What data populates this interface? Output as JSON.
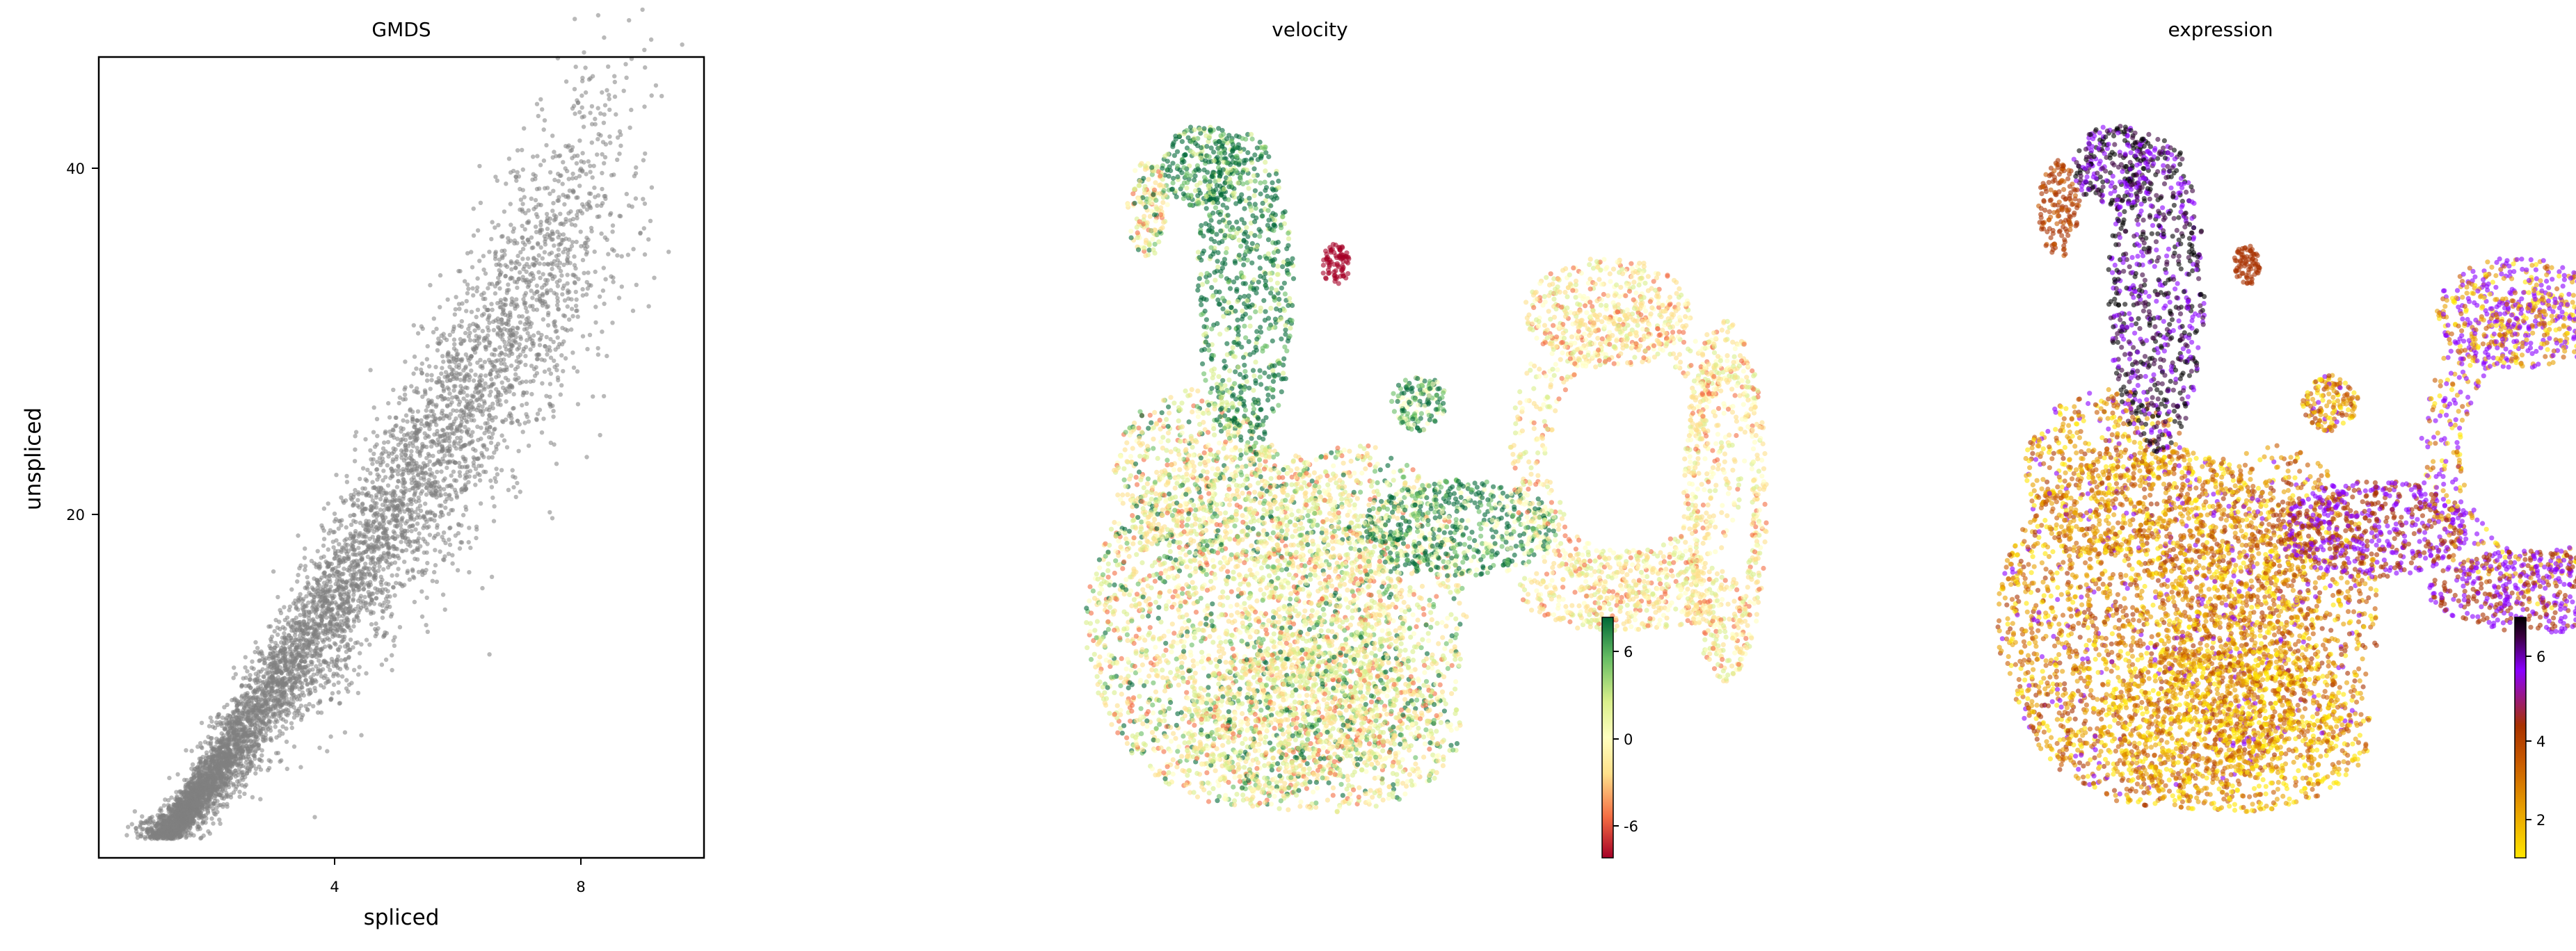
{
  "chart_data": [
    {
      "type": "scatter",
      "title": "GMDS",
      "xlabel": "spliced",
      "ylabel": "unspliced",
      "xlim": [
        -0.9,
        9.9
      ],
      "ylim": [
        -0.5,
        45.9
      ],
      "xticks": [
        4,
        8
      ],
      "yticks": [
        20,
        40
      ],
      "point_color": "#808080",
      "grid": false,
      "description_of_data": "dense cloud of cells; spliced vs unspliced counts"
    },
    {
      "type": "scatter",
      "title": "velocity",
      "axes": false,
      "colormap": [
        "#a50026",
        "#f46d43",
        "#fee08b",
        "#ffffbf",
        "#d9ef8b",
        "#66bd63",
        "#006837"
      ],
      "colorbar": {
        "ticks": [
          6,
          0,
          -6
        ],
        "range": [
          -8,
          8
        ]
      }
    },
    {
      "type": "scatter",
      "title": "expression",
      "axes": false,
      "colormap": [
        "#ffe600",
        "#e8a000",
        "#c85a00",
        "#a83200",
        "#8b00ff",
        "#3a0040",
        "#000000"
      ],
      "colorbar": {
        "ticks": [
          6,
          4,
          2
        ],
        "range": [
          1,
          7.2
        ]
      }
    }
  ]
}
